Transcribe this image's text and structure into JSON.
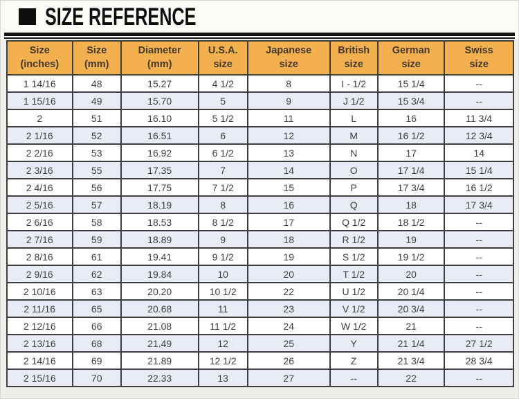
{
  "title": "SIZE REFERENCE",
  "colors": {
    "header_bg": "#f2b04e",
    "row_alt_bg": "#e9ebf7",
    "grid_border": "#3e3e3e",
    "title_color": "#0e0e0e",
    "page_bg": "#efeeea"
  },
  "table": {
    "headers": [
      {
        "id": "size-inches",
        "line1": "Size",
        "line2": "(inches)"
      },
      {
        "id": "size-mm",
        "line1": "Size",
        "line2": "(mm)"
      },
      {
        "id": "diameter-mm",
        "line1": "Diameter",
        "line2": "(mm)"
      },
      {
        "id": "usa-size",
        "line1": "U.S.A.",
        "line2": "size"
      },
      {
        "id": "japanese-size",
        "line1": "Japanese",
        "line2": "size"
      },
      {
        "id": "british-size",
        "line1": "British",
        "line2": "size"
      },
      {
        "id": "german-size",
        "line1": "German",
        "line2": "size"
      },
      {
        "id": "swiss-size",
        "line1": "Swiss",
        "line2": "size"
      }
    ],
    "rows": [
      [
        "1 14/16",
        "48",
        "15.27",
        "4 1/2",
        "8",
        "I - 1/2",
        "15 1/4",
        "--"
      ],
      [
        "1 15/16",
        "49",
        "15.70",
        "5",
        "9",
        "J 1/2",
        "15 3/4",
        "--"
      ],
      [
        "2",
        "51",
        "16.10",
        "5 1/2",
        "11",
        "L",
        "16",
        "11 3/4"
      ],
      [
        "2 1/16",
        "52",
        "16.51",
        "6",
        "12",
        "M",
        "16 1/2",
        "12 3/4"
      ],
      [
        "2 2/16",
        "53",
        "16.92",
        "6 1/2",
        "13",
        "N",
        "17",
        "14"
      ],
      [
        "2 3/16",
        "55",
        "17.35",
        "7",
        "14",
        "O",
        "17 1/4",
        "15 1/4"
      ],
      [
        "2 4/16",
        "56",
        "17.75",
        "7 1/2",
        "15",
        "P",
        "17 3/4",
        "16 1/2"
      ],
      [
        "2 5/16",
        "57",
        "18.19",
        "8",
        "16",
        "Q",
        "18",
        "17 3/4"
      ],
      [
        "2 6/16",
        "58",
        "18.53",
        "8 1/2",
        "17",
        "Q 1/2",
        "18 1/2",
        "--"
      ],
      [
        "2 7/16",
        "59",
        "18.89",
        "9",
        "18",
        "R 1/2",
        "19",
        "--"
      ],
      [
        "2 8/16",
        "61",
        "19.41",
        "9 1/2",
        "19",
        "S 1/2",
        "19 1/2",
        "--"
      ],
      [
        "2 9/16",
        "62",
        "19.84",
        "10",
        "20",
        "T 1/2",
        "20",
        "--"
      ],
      [
        "2 10/16",
        "63",
        "20.20",
        "10 1/2",
        "22",
        "U 1/2",
        "20 1/4",
        "--"
      ],
      [
        "2 11/16",
        "65",
        "20.68",
        "11",
        "23",
        "V 1/2",
        "20 3/4",
        "--"
      ],
      [
        "2 12/16",
        "66",
        "21.08",
        "11 1/2",
        "24",
        "W 1/2",
        "21",
        "--"
      ],
      [
        "2 13/16",
        "68",
        "21.49",
        "12",
        "25",
        "Y",
        "21 1/4",
        "27 1/2"
      ],
      [
        "2 14/16",
        "69",
        "21.89",
        "12 1/2",
        "26",
        "Z",
        "21 3/4",
        "28 3/4"
      ],
      [
        "2 15/16",
        "70",
        "22.33",
        "13",
        "27",
        "--",
        "22",
        "--"
      ]
    ]
  }
}
